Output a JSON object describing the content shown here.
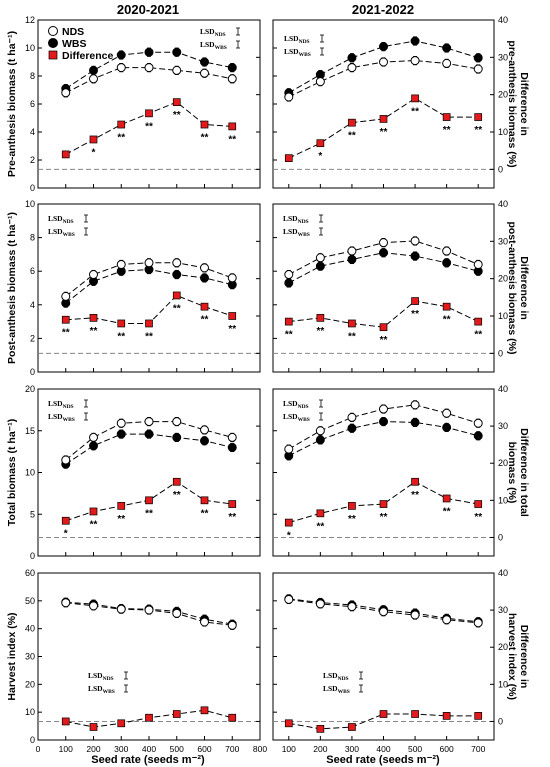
{
  "column_titles": [
    "2020-2021",
    "2021-2022"
  ],
  "x_label": "Seed rate (seeds m⁻²)",
  "x_ticks_left": [
    "0",
    "100",
    "200",
    "300",
    "400",
    "500",
    "600",
    "700",
    "800"
  ],
  "x_ticks_right": [
    "100",
    "200",
    "300",
    "400",
    "500",
    "600",
    "700"
  ],
  "legend": {
    "nds": "NDS",
    "wbs": "WBS",
    "difference": "Difference"
  },
  "lsd": {
    "nds": "LSD",
    "nds_sub": "NDS",
    "wbs": "LSD",
    "wbs_sub": "WBS"
  },
  "colors": {
    "difference": "#e31a1c",
    "wbs": "#000000",
    "nds": "#ffffff"
  },
  "chart_data": [
    {
      "type": "line",
      "row": 0,
      "col": 0,
      "ylabel": "Pre-anthesis biomass (t ha⁻¹)",
      "ylim": [
        0,
        12
      ],
      "yticks": [
        "0",
        "2",
        "4",
        "6",
        "8",
        "10",
        "12"
      ],
      "y2lim": [
        -5,
        40
      ],
      "y2ticks": [
        "0",
        "10",
        "20",
        "30",
        "40"
      ],
      "y2label": "Difference in pre-anthesis biomass (%)",
      "x": [
        100,
        200,
        300,
        400,
        500,
        600,
        700
      ],
      "series": [
        {
          "name": "NDS",
          "axis": "left",
          "values": [
            6.8,
            7.8,
            8.6,
            8.6,
            8.4,
            8.2,
            7.8
          ]
        },
        {
          "name": "WBS",
          "axis": "left",
          "values": [
            7.1,
            8.4,
            9.5,
            9.7,
            9.7,
            9.0,
            8.6
          ]
        },
        {
          "name": "Difference",
          "axis": "right",
          "values": [
            4.0,
            8.0,
            12.0,
            15.0,
            18.0,
            12.0,
            11.5
          ]
        }
      ],
      "significance": [
        "",
        "*",
        "**",
        "**",
        "**",
        "**",
        "**"
      ]
    },
    {
      "type": "line",
      "row": 0,
      "col": 1,
      "ylabel": "Pre-anthesis biomass (t ha⁻¹)",
      "ylim": [
        0,
        12
      ],
      "yticks": [
        "0",
        "2",
        "4",
        "6",
        "8",
        "10",
        "12"
      ],
      "y2lim": [
        -5,
        40
      ],
      "y2ticks": [
        "0",
        "10",
        "20",
        "30",
        "40"
      ],
      "y2label": "Difference in pre-anthesis biomass (%)",
      "x": [
        100,
        200,
        300,
        400,
        500,
        600,
        700
      ],
      "series": [
        {
          "name": "NDS",
          "axis": "left",
          "values": [
            6.5,
            7.6,
            8.6,
            9.0,
            9.1,
            8.9,
            8.5
          ]
        },
        {
          "name": "WBS",
          "axis": "left",
          "values": [
            6.8,
            8.1,
            9.3,
            10.1,
            10.5,
            10.0,
            9.3
          ]
        },
        {
          "name": "Difference",
          "axis": "right",
          "values": [
            3.0,
            7.0,
            12.5,
            13.5,
            19.0,
            14.0,
            14.0
          ]
        }
      ],
      "significance": [
        "",
        "*",
        "**",
        "**",
        "**",
        "**",
        "**"
      ]
    },
    {
      "type": "line",
      "row": 1,
      "col": 0,
      "ylabel": "Post-anthesis biomass (t ha⁻¹)",
      "ylim": [
        0,
        10
      ],
      "yticks": [
        "0",
        "2",
        "4",
        "6",
        "8",
        "10"
      ],
      "y2lim": [
        -5,
        40
      ],
      "y2ticks": [
        "0",
        "10",
        "20",
        "30",
        "40"
      ],
      "y2label": "Difference in post-anthesis biomass (%)",
      "x": [
        100,
        200,
        300,
        400,
        500,
        600,
        700
      ],
      "series": [
        {
          "name": "NDS",
          "axis": "left",
          "values": [
            4.5,
            5.8,
            6.4,
            6.5,
            6.5,
            6.2,
            5.6
          ]
        },
        {
          "name": "WBS",
          "axis": "left",
          "values": [
            4.1,
            5.4,
            6.0,
            6.1,
            5.8,
            5.6,
            5.2
          ]
        },
        {
          "name": "Difference",
          "axis": "right",
          "values": [
            9.0,
            9.5,
            8.0,
            8.0,
            15.5,
            12.5,
            10.0
          ]
        }
      ],
      "significance": [
        "**",
        "**",
        "**",
        "**",
        "**",
        "**",
        "**"
      ]
    },
    {
      "type": "line",
      "row": 1,
      "col": 1,
      "ylabel": "Post-anthesis biomass (t ha⁻¹)",
      "ylim": [
        0,
        10
      ],
      "yticks": [
        "0",
        "2",
        "4",
        "6",
        "8",
        "10"
      ],
      "y2lim": [
        -5,
        40
      ],
      "y2ticks": [
        "0",
        "10",
        "20",
        "30",
        "40"
      ],
      "y2label": "Difference in post-anthesis biomass (%)",
      "x": [
        100,
        200,
        300,
        400,
        500,
        600,
        700
      ],
      "series": [
        {
          "name": "NDS",
          "axis": "left",
          "values": [
            5.8,
            6.8,
            7.2,
            7.7,
            7.8,
            7.2,
            6.4
          ]
        },
        {
          "name": "WBS",
          "axis": "left",
          "values": [
            5.3,
            6.3,
            6.7,
            7.1,
            6.9,
            6.5,
            6.0
          ]
        },
        {
          "name": "Difference",
          "axis": "right",
          "values": [
            8.5,
            9.5,
            8.0,
            7.0,
            14.0,
            12.5,
            8.5
          ]
        }
      ],
      "significance": [
        "**",
        "**",
        "**",
        "**",
        "**",
        "**",
        "**"
      ]
    },
    {
      "type": "line",
      "row": 2,
      "col": 0,
      "ylabel": "Total biomass (t ha⁻¹)",
      "ylim": [
        0,
        20
      ],
      "yticks": [
        "0",
        "5",
        "10",
        "15",
        "20"
      ],
      "y2lim": [
        -5,
        40
      ],
      "y2ticks": [
        "0",
        "10",
        "20",
        "30",
        "40"
      ],
      "y2label": "Difference in total biomass (%)",
      "x": [
        100,
        200,
        300,
        400,
        500,
        600,
        700
      ],
      "series": [
        {
          "name": "NDS",
          "axis": "left",
          "values": [
            11.5,
            14.2,
            15.9,
            16.1,
            16.1,
            15.1,
            14.2
          ]
        },
        {
          "name": "WBS",
          "axis": "left",
          "values": [
            11.0,
            13.2,
            14.6,
            14.6,
            14.2,
            13.8,
            13.0
          ]
        },
        {
          "name": "Difference",
          "axis": "right",
          "values": [
            4.5,
            7.0,
            8.5,
            10.0,
            15.0,
            10.0,
            9.0
          ]
        }
      ],
      "significance": [
        "*",
        "**",
        "**",
        "**",
        "**",
        "**",
        "**"
      ]
    },
    {
      "type": "line",
      "row": 2,
      "col": 1,
      "ylabel": "Total biomass (t ha⁻¹)",
      "ylim": [
        0,
        20
      ],
      "yticks": [
        "0",
        "5",
        "10",
        "15",
        "20"
      ],
      "y2lim": [
        -5,
        40
      ],
      "y2ticks": [
        "0",
        "10",
        "20",
        "30",
        "40"
      ],
      "y2label": "Difference in total biomass (%)",
      "x": [
        100,
        200,
        300,
        400,
        500,
        600,
        700
      ],
      "series": [
        {
          "name": "NDS",
          "axis": "left",
          "values": [
            12.8,
            15.0,
            16.6,
            17.6,
            18.1,
            17.1,
            15.9
          ]
        },
        {
          "name": "WBS",
          "axis": "left",
          "values": [
            12.0,
            13.9,
            15.3,
            16.1,
            16.0,
            15.4,
            14.4
          ]
        },
        {
          "name": "Difference",
          "axis": "right",
          "values": [
            4.0,
            6.5,
            8.5,
            9.0,
            15.0,
            10.5,
            9.0
          ]
        }
      ],
      "significance": [
        "*",
        "**",
        "**",
        "**",
        "**",
        "**",
        "**"
      ]
    },
    {
      "type": "line",
      "row": 3,
      "col": 0,
      "ylabel": "Harvest index (%)",
      "ylim": [
        0,
        60
      ],
      "yticks": [
        "0",
        "10",
        "20",
        "30",
        "40",
        "50",
        "60"
      ],
      "y2lim": [
        -5,
        40
      ],
      "y2ticks": [
        "0",
        "10",
        "20",
        "30",
        "40"
      ],
      "y2label": "Difference in harvest index (%)",
      "x": [
        100,
        200,
        300,
        400,
        500,
        600,
        700
      ],
      "series": [
        {
          "name": "NDS",
          "axis": "left",
          "values": [
            49.3,
            48.2,
            47.0,
            46.7,
            45.5,
            42.4,
            41.2
          ]
        },
        {
          "name": "WBS",
          "axis": "left",
          "values": [
            49.5,
            48.8,
            47.2,
            47.0,
            46.2,
            43.4,
            41.6
          ]
        },
        {
          "name": "Difference",
          "axis": "right",
          "values": [
            0.0,
            -1.5,
            -0.5,
            1.0,
            2.0,
            3.0,
            1.0
          ]
        }
      ],
      "significance": [
        "",
        "",
        "",
        "",
        "",
        "",
        ""
      ]
    },
    {
      "type": "line",
      "row": 3,
      "col": 1,
      "ylabel": "Harvest index (%)",
      "ylim": [
        0,
        60
      ],
      "yticks": [
        "0",
        "10",
        "20",
        "30",
        "40",
        "50",
        "60"
      ],
      "y2lim": [
        -5,
        40
      ],
      "y2ticks": [
        "0",
        "10",
        "20",
        "30",
        "40"
      ],
      "y2label": "Difference in harvest index (%)",
      "x": [
        100,
        200,
        300,
        400,
        500,
        600,
        700
      ],
      "series": [
        {
          "name": "NDS",
          "axis": "left",
          "values": [
            50.5,
            48.9,
            47.9,
            46.1,
            44.9,
            43.2,
            42.1
          ]
        },
        {
          "name": "WBS",
          "axis": "left",
          "values": [
            50.7,
            49.4,
            48.5,
            46.8,
            45.6,
            43.7,
            42.5
          ]
        },
        {
          "name": "Difference",
          "axis": "right",
          "values": [
            -0.5,
            -2.0,
            -1.5,
            2.0,
            2.0,
            1.5,
            1.5
          ]
        }
      ],
      "significance": [
        "",
        "",
        "",
        "",
        "",
        "",
        ""
      ]
    }
  ]
}
